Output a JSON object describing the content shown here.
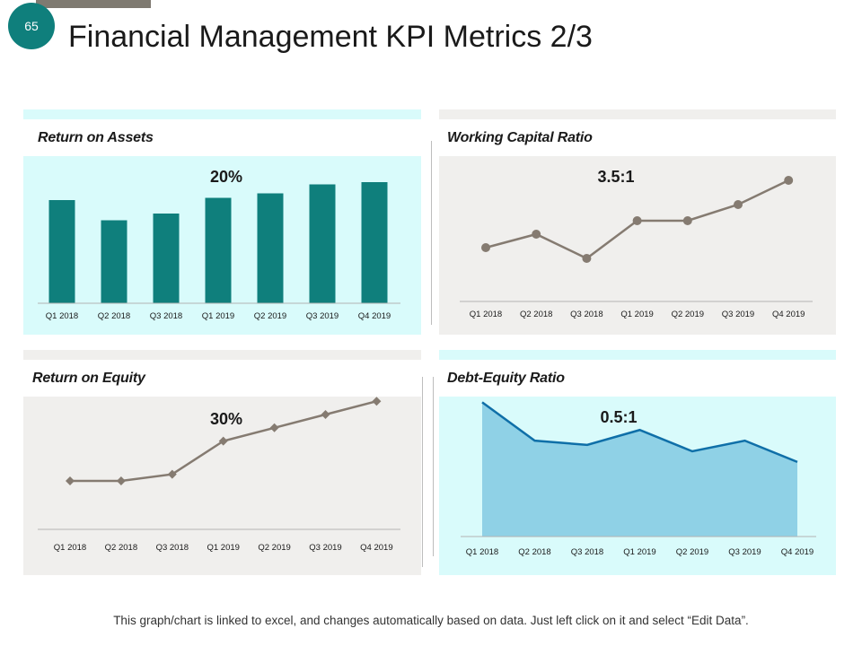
{
  "slide": {
    "page_number": "65",
    "title": "Financial Management KPI Metrics 2/3",
    "footnote": "This graph/chart is linked to excel, and changes automatically based on data. Just left click on it and select “Edit Data”."
  },
  "colors": {
    "teal_dark": "#0f7f7c",
    "teal_light": "#d9fbfb",
    "gray_light": "#f0efed",
    "line_gray": "#857b71",
    "area_fill": "#8fd1e6",
    "area_line": "#0f6fa8",
    "top_bar": "#7f7a71"
  },
  "panels": {
    "roa": {
      "label": "Return on Assets",
      "value": "20%"
    },
    "wcr": {
      "label": "Working Capital Ratio",
      "value": "3.5:1"
    },
    "roe": {
      "label": "Return on Equity",
      "value": "30%"
    },
    "der": {
      "label": "Debt-Equity Ratio",
      "value": "0.5:1"
    }
  },
  "chart_data": [
    {
      "id": "roa",
      "type": "bar",
      "title": "Return on Assets",
      "categories": [
        "Q1 2018",
        "Q2 2018",
        "Q3 2018",
        "Q1 2019",
        "Q2 2019",
        "Q3 2019",
        "Q4 2019"
      ],
      "values": [
        46,
        37,
        40,
        47,
        49,
        53,
        54
      ],
      "ylim": [
        0,
        60
      ],
      "xlabel": "",
      "ylabel": "",
      "grid": false
    },
    {
      "id": "wcr",
      "type": "line",
      "title": "Working Capital Ratio",
      "categories": [
        "Q1 2018",
        "Q2 2018",
        "Q3 2018",
        "Q1 2019",
        "Q2 2019",
        "Q3 2019",
        "Q4 2019"
      ],
      "values": [
        2.0,
        2.5,
        1.6,
        3.0,
        3.0,
        3.6,
        4.5
      ],
      "ylim": [
        0,
        5
      ],
      "marker": "circle",
      "xlabel": "",
      "ylabel": "",
      "grid": false
    },
    {
      "id": "roe",
      "type": "line",
      "title": "Return on Equity",
      "categories": [
        "Q1 2018",
        "Q2 2018",
        "Q3 2018",
        "Q1 2019",
        "Q2 2019",
        "Q3 2019",
        "Q4 2019"
      ],
      "values": [
        10,
        10,
        12,
        22,
        26,
        30,
        34
      ],
      "ylim": [
        0,
        40
      ],
      "marker": "diamond",
      "xlabel": "",
      "ylabel": "",
      "grid": false
    },
    {
      "id": "der",
      "type": "area",
      "title": "Debt-Equity Ratio",
      "categories": [
        "Q1 2018",
        "Q2 2018",
        "Q3 2018",
        "Q1 2019",
        "Q2 2019",
        "Q3 2019",
        "Q4 2019"
      ],
      "values": [
        6.3,
        4.5,
        4.3,
        5.0,
        4.0,
        4.5,
        3.5
      ],
      "ylim": [
        0,
        8
      ],
      "xlabel": "",
      "ylabel": "",
      "grid": false
    }
  ]
}
